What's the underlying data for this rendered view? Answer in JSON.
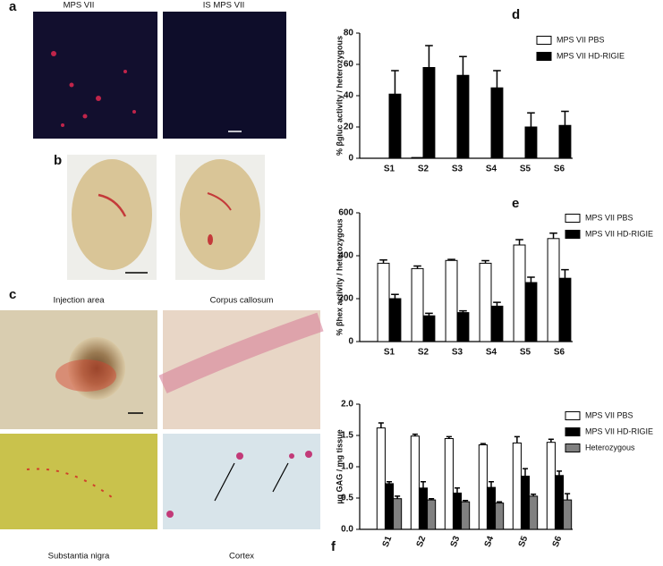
{
  "panels": {
    "a": {
      "letter": "a",
      "titles": [
        "MPS VII",
        "IS MPS VII"
      ]
    },
    "b": {
      "letter": "b"
    },
    "c": {
      "letter": "c",
      "captions": [
        "Injection area",
        "Corpus callosum",
        "Substantia nigra",
        "Cortex"
      ]
    }
  },
  "chart_data": [
    {
      "type": "bar",
      "panel": "d",
      "y_label": "% βgluc activity / heterozygous",
      "categories": [
        "S1",
        "S2",
        "S3",
        "S4",
        "S5",
        "S6"
      ],
      "ylim": [
        0,
        80
      ],
      "yticks": [
        0,
        20,
        40,
        60,
        80
      ],
      "series": [
        {
          "name": "MPS VII PBS",
          "color": "#ffffff",
          "values": [
            0,
            0.5,
            0,
            0,
            0,
            0
          ]
        },
        {
          "name": "MPS VII HD-RIGIE",
          "color": "#000000",
          "values": [
            41,
            58,
            53,
            45,
            20,
            21
          ],
          "errors": [
            15,
            14,
            12,
            11,
            9,
            9
          ]
        }
      ]
    },
    {
      "type": "bar",
      "panel": "e",
      "y_label": "% βhex activity / heterozygous",
      "categories": [
        "S1",
        "S2",
        "S3",
        "S4",
        "S5",
        "S6"
      ],
      "ylim": [
        0,
        600
      ],
      "yticks": [
        0,
        200,
        400,
        600
      ],
      "series": [
        {
          "name": "MPS VII PBS",
          "color": "#ffffff",
          "values": [
            365,
            340,
            378,
            365,
            450,
            480
          ],
          "errors": [
            15,
            12,
            5,
            12,
            25,
            25
          ]
        },
        {
          "name": "MPS VII HD-RIGIE",
          "color": "#000000",
          "values": [
            200,
            120,
            135,
            165,
            275,
            295
          ],
          "errors": [
            20,
            12,
            8,
            18,
            25,
            40
          ]
        }
      ]
    },
    {
      "type": "bar",
      "panel": "f",
      "y_label": "µg GAG / mg tissue",
      "rotate_x_labels": true,
      "categories": [
        "S1",
        "S2",
        "S3",
        "S4",
        "S5",
        "S6"
      ],
      "ylim": [
        0,
        2
      ],
      "yticks": [
        {
          "value": 0,
          "label": "0.0"
        },
        0.5,
        {
          "value": 1,
          "label": "1.0"
        },
        1.5,
        {
          "value": 2,
          "label": "2.0"
        }
      ],
      "series": [
        {
          "name": "MPS VII PBS",
          "color": "#ffffff",
          "values": [
            1.62,
            1.49,
            1.45,
            1.35,
            1.38,
            1.39
          ],
          "errors": [
            0.08,
            0.03,
            0.03,
            0.02,
            0.1,
            0.05
          ]
        },
        {
          "name": "MPS VII HD-RIGIE",
          "color": "#000000",
          "values": [
            0.73,
            0.66,
            0.58,
            0.67,
            0.85,
            0.86
          ],
          "errors": [
            0.03,
            0.1,
            0.08,
            0.09,
            0.12,
            0.07
          ]
        },
        {
          "name": "Heterozygous",
          "color": "#808080",
          "values": [
            0.49,
            0.47,
            0.44,
            0.42,
            0.53,
            0.47
          ],
          "errors": [
            0.04,
            0.02,
            0.02,
            0.02,
            0.03,
            0.1
          ]
        }
      ]
    }
  ]
}
